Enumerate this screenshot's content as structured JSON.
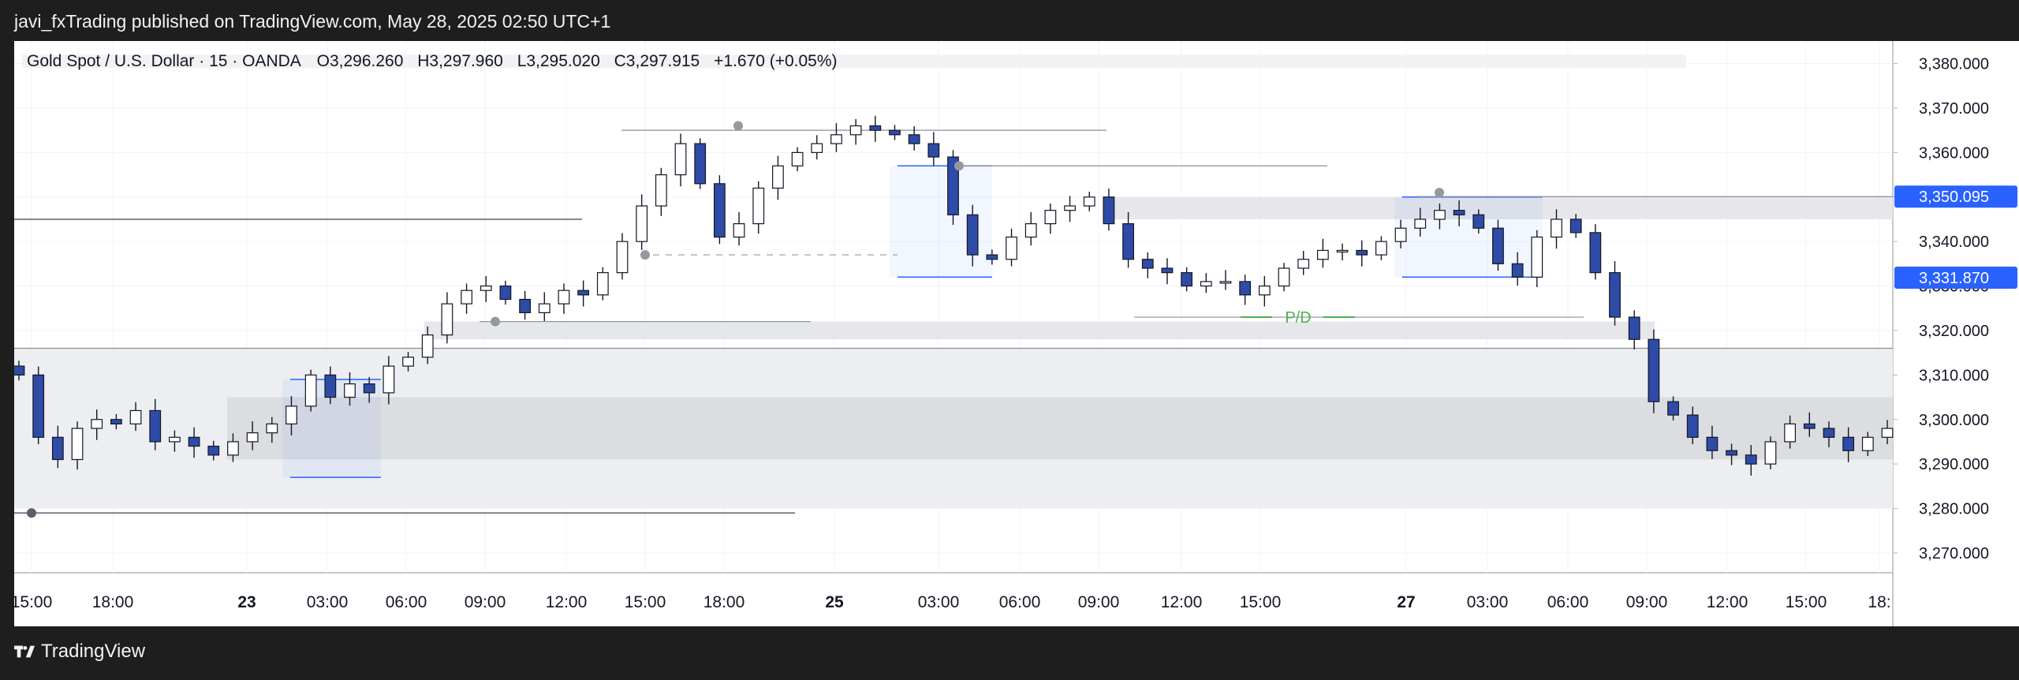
{
  "header": {
    "text": "javi_fxTrading published on TradingView.com, May 28, 2025 02:50 UTC+1"
  },
  "legend": {
    "symbol": "Gold Spot / U.S. Dollar · 15 · OANDA",
    "open": "O3,296.260",
    "high": "H3,297.960",
    "low": "L3,295.020",
    "close": "C3,297.915",
    "change": "+1.670 (+0.05%)"
  },
  "brand": {
    "name": "TradingView"
  },
  "annotations": {
    "pd_label": "P/D"
  },
  "colors": {
    "up": "#ffffff",
    "down": "#2f4ba8",
    "wick": "#131722",
    "accent": "#2962ff",
    "zone": "#e8e8ec",
    "pd": "#4caf50"
  },
  "chart_data": {
    "type": "candlestick",
    "y_ticks": [
      "3,380.000",
      "3,370.000",
      "3,360.000",
      "3,350.000",
      "3,340.000",
      "3,330.000",
      "3,320.000",
      "3,310.000",
      "3,300.000",
      "3,290.000",
      "3,280.000",
      "3,270.000"
    ],
    "y_range": [
      3265,
      3385
    ],
    "x_ticks": [
      "15:00",
      "18:00",
      "23",
      "03:00",
      "06:00",
      "09:00",
      "12:00",
      "15:00",
      "18:00",
      "25",
      "03:00",
      "06:00",
      "09:00",
      "12:00",
      "15:00",
      "27",
      "03:00",
      "06:00",
      "09:00",
      "12:00",
      "15:00",
      "18:"
    ],
    "price_labels": [
      {
        "text": "3,350.095",
        "value": 3350.095
      },
      {
        "text": "3,331.870",
        "value": 3331.87
      }
    ],
    "series": [
      {
        "values": [
          3310,
          3296,
          3291,
          3298,
          3300,
          3299,
          3302,
          3295,
          3296,
          3294,
          3292,
          3295,
          3297,
          3299,
          3303,
          3310,
          3305,
          3308,
          3306,
          3312,
          3314,
          3319,
          3326,
          3329,
          3330,
          3327,
          3324,
          3326,
          3329,
          3328,
          3333,
          3340,
          3348,
          3355,
          3362,
          3353,
          3341,
          3344,
          3352,
          3357,
          3360,
          3362,
          3364,
          3366,
          3365,
          3364,
          3362,
          3359,
          3346,
          3337,
          3336,
          3341,
          3344,
          3347,
          3348,
          3350,
          3344,
          3336,
          3334,
          3333,
          3330,
          3331,
          3331,
          3328,
          3330,
          3334,
          3336,
          3338,
          3338,
          3337,
          3340,
          3343,
          3345,
          3347,
          3346,
          3343,
          3335,
          3332,
          3341,
          3345,
          3342,
          3333,
          3323,
          3318,
          3304,
          3301,
          3296,
          3293,
          3292,
          3290,
          3295,
          3299,
          3298,
          3296,
          3293,
          3296,
          3298
        ]
      }
    ]
  }
}
